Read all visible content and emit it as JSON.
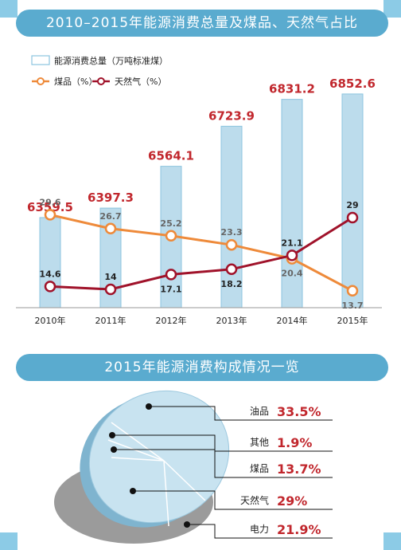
{
  "top_banner": "2010–2015年能源消费总量及煤品、天然气占比",
  "mid_banner": "2015年能源消费构成情况一览",
  "chart_data": [
    {
      "type": "bar+line",
      "categories": [
        "2010年",
        "2011年",
        "2012年",
        "2013年",
        "2014年",
        "2015年"
      ],
      "bar_series": {
        "name": "能源消费总量（万吨标准煤）",
        "values": [
          6359.5,
          6397.3,
          6564.1,
          6723.9,
          6831.2,
          6852.6
        ],
        "value_labels": [
          "6359.5",
          "6397.3",
          "6564.1",
          "6723.9",
          "6831.2",
          "6852.6"
        ],
        "color": "#bcdcec",
        "stroke": "#8cc4df",
        "label_color": "#c1272d"
      },
      "line_series": [
        {
          "name": "煤品（%）",
          "values": [
            29.6,
            26.7,
            25.2,
            23.3,
            20.4,
            13.7
          ],
          "value_labels": [
            "29.6",
            "26.7",
            "25.2",
            "23.3",
            "20.4",
            "13.7"
          ],
          "color": "#ee8a3a",
          "label_color": "#666666"
        },
        {
          "name": "天然气（%）",
          "values": [
            14.6,
            14,
            17.1,
            18.2,
            21.1,
            29
          ],
          "value_labels": [
            "14.6",
            "14",
            "17.1",
            "18.2",
            "21.1",
            "29"
          ],
          "color": "#a0122a",
          "label_color": "#222222"
        }
      ]
    },
    {
      "type": "pie",
      "slices": [
        {
          "name": "油品",
          "value": 33.5,
          "label": "33.5%"
        },
        {
          "name": "其他",
          "value": 1.9,
          "label": "1.9%"
        },
        {
          "name": "煤品",
          "value": 13.7,
          "label": "13.7%"
        },
        {
          "name": "天然气",
          "value": 29,
          "label": "29%"
        },
        {
          "name": "电力",
          "value": 21.9,
          "label": "21.9%"
        }
      ],
      "name_color": "#222222",
      "value_color": "#c1272d",
      "disc_color": "#c8e3f0",
      "shadow_color": "#8a8a8a"
    }
  ]
}
